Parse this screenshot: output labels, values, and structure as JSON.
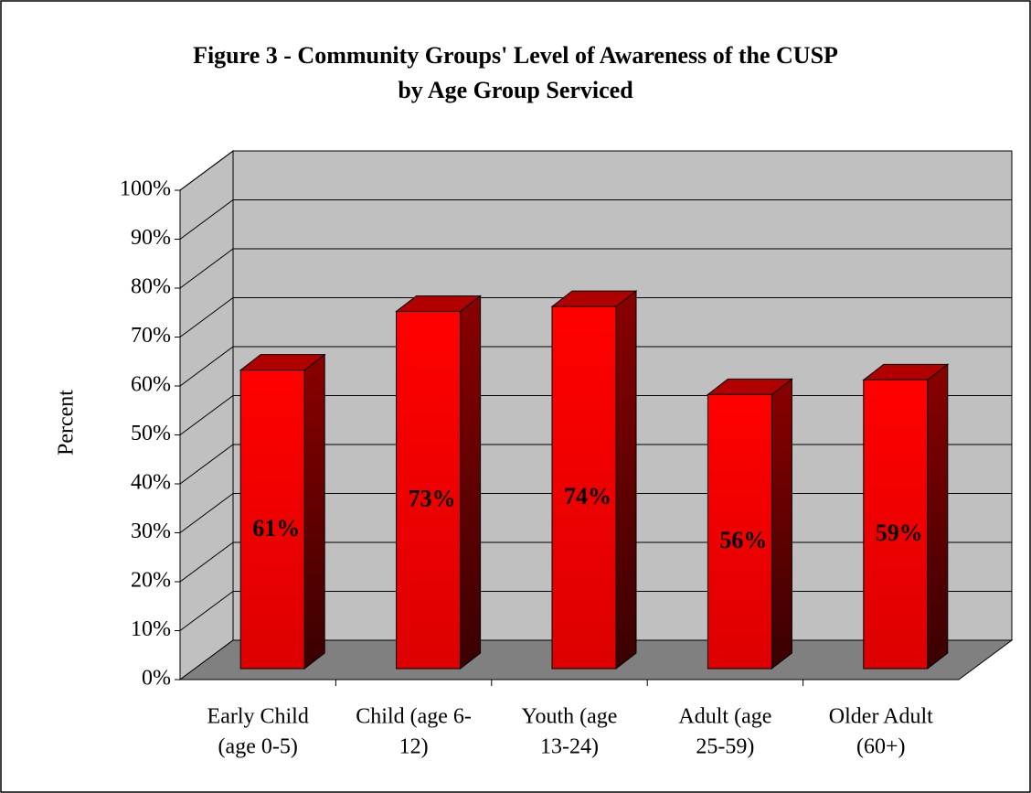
{
  "chart_data": {
    "type": "bar3d",
    "title": [
      "Figure 3 - Community Groups' Level of Awareness of the CUSP",
      "by Age Group Serviced"
    ],
    "ylabel": "Percent",
    "categories": [
      [
        "Early Child",
        "(age 0-5)"
      ],
      [
        "Child (age 6-",
        "12)"
      ],
      [
        "Youth (age",
        "13-24)"
      ],
      [
        "Adult (age",
        "25-59)"
      ],
      [
        "Older Adult",
        "(60+)"
      ]
    ],
    "values": [
      61,
      73,
      74,
      56,
      59
    ],
    "value_labels": [
      "61%",
      "73%",
      "74%",
      "56%",
      "59%"
    ],
    "color": "#ff0000",
    "ylim": [
      0,
      100
    ],
    "yticks": [
      {
        "value": 0,
        "label": "0%"
      },
      {
        "value": 10,
        "label": "10%"
      },
      {
        "value": 20,
        "label": "20%"
      },
      {
        "value": 30,
        "label": "30%"
      },
      {
        "value": 40,
        "label": "40%"
      },
      {
        "value": 50,
        "label": "50%"
      },
      {
        "value": 60,
        "label": "60%"
      },
      {
        "value": 70,
        "label": "70%"
      },
      {
        "value": 80,
        "label": "80%"
      },
      {
        "value": 90,
        "label": "90%"
      },
      {
        "value": 100,
        "label": "100%"
      }
    ],
    "grid": true
  }
}
